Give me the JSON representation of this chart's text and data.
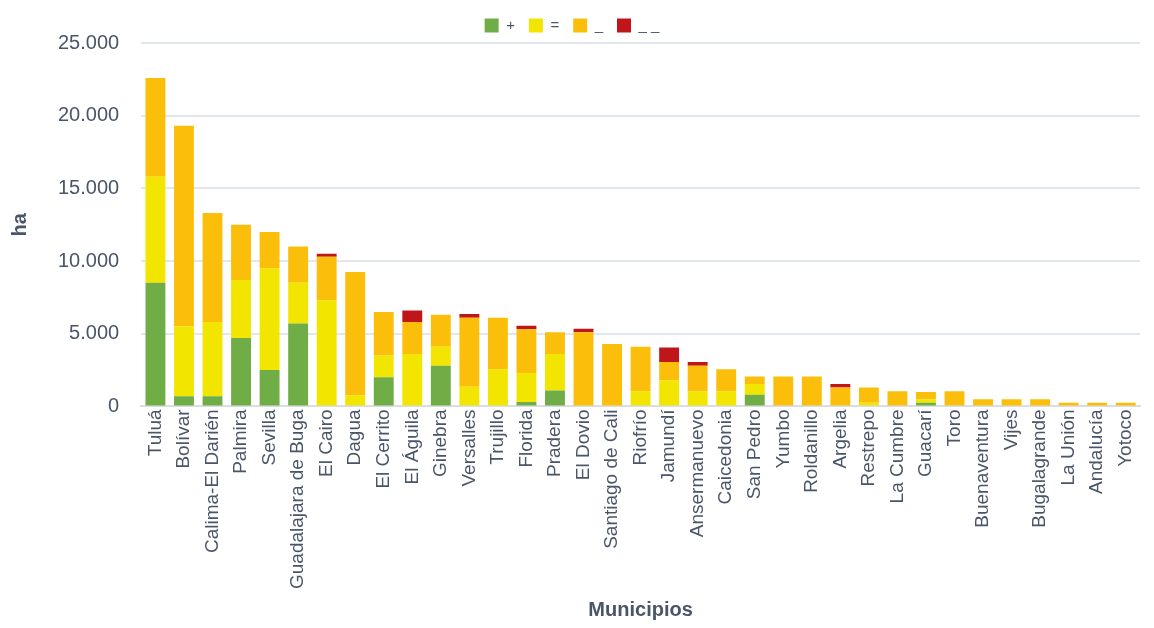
{
  "chart_data": {
    "type": "bar",
    "stacked": true,
    "xlabel": "Municipios",
    "ylabel": "ha",
    "categories": [
      "Tuluá",
      "Bolívar",
      "Calima-El Darién",
      "Palmira",
      "Sevilla",
      "Guadalajara de Buga",
      "El Cairo",
      "Dagua",
      "El Cerrito",
      "El Águila",
      "Ginebra",
      "Versalles",
      "Trujillo",
      "Florida",
      "Pradera",
      "El Dovio",
      "Santiago de Cali",
      "Riofrío",
      "Jamundí",
      "Ansermanuevo",
      "Caicedonia",
      "San Pedro",
      "Yumbo",
      "Roldanillo",
      "Argelia",
      "Restrepo",
      "La Cumbre",
      "Guacarí",
      "Toro",
      "Buenaventura",
      "Vijes",
      "Bugalagrande",
      "La Unión",
      "Andalucía",
      "Yotoco"
    ],
    "series": [
      {
        "name": "+",
        "color": "#70ad47",
        "values": [
          8500,
          700,
          700,
          4700,
          2500,
          5700,
          0,
          0,
          2000,
          0,
          2800,
          0,
          0,
          300,
          1100,
          0,
          0,
          0,
          0,
          0,
          0,
          800,
          0,
          0,
          0,
          0,
          0,
          250,
          0,
          0,
          0,
          0,
          0,
          0,
          0
        ]
      },
      {
        "name": "=",
        "color": "#f2e500",
        "values": [
          7300,
          4800,
          5100,
          4000,
          7000,
          2800,
          7300,
          750,
          1500,
          3600,
          1300,
          1350,
          2550,
          2000,
          2500,
          0,
          0,
          1050,
          1800,
          1050,
          1050,
          750,
          0,
          0,
          0,
          250,
          0,
          250,
          0,
          0,
          0,
          0,
          0,
          0,
          0
        ]
      },
      {
        "name": "_",
        "color": "#fbbf0b",
        "values": [
          6800,
          13800,
          7500,
          3800,
          2500,
          2500,
          3000,
          8500,
          3000,
          2200,
          2200,
          4750,
          3550,
          3000,
          1500,
          5100,
          4300,
          3050,
          1250,
          1750,
          1500,
          500,
          2050,
          2050,
          1300,
          1050,
          1050,
          500,
          1050,
          500,
          500,
          500,
          250,
          250,
          250
        ]
      },
      {
        "name": "_ _",
        "color": "#c0161a",
        "values": [
          0,
          0,
          0,
          0,
          0,
          0,
          200,
          0,
          0,
          800,
          0,
          250,
          0,
          250,
          0,
          250,
          0,
          0,
          1000,
          250,
          0,
          0,
          0,
          0,
          250,
          0,
          0,
          0,
          0,
          0,
          0,
          0,
          0,
          0,
          0
        ]
      }
    ],
    "ylim": [
      0,
      25000
    ],
    "yticks": [
      {
        "value": 0,
        "label": "0"
      },
      {
        "value": 5000,
        "label": "5.000"
      },
      {
        "value": 10000,
        "label": "10.000"
      },
      {
        "value": 15000,
        "label": "15.000"
      },
      {
        "value": 20000,
        "label": "20.000"
      },
      {
        "value": 25000,
        "label": "25.000"
      }
    ],
    "grid": "y",
    "legend": "top"
  }
}
